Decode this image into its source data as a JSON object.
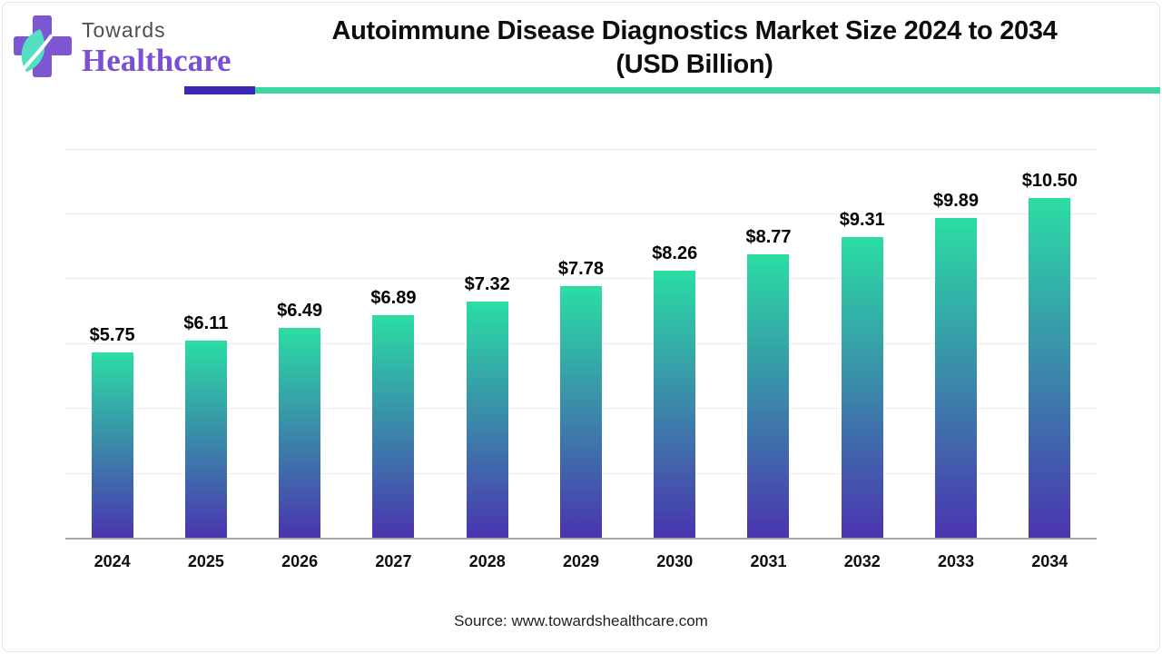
{
  "header": {
    "logo_line1": "Towards",
    "logo_line2": "Healthcare",
    "title_line1": "Autoimmune Disease Diagnostics Market Size 2024 to 2034",
    "title_line2": "(USD Billion)",
    "accent_purple_color": "#3a28b5",
    "accent_teal_color": "#3ed6a3",
    "logo_cross_color": "#7d57d2",
    "logo_leaf_color": "#54dfc0"
  },
  "chart_data": {
    "type": "bar",
    "title": "Autoimmune Disease Diagnostics Market Size 2024 to 2034 (USD Billion)",
    "categories": [
      "2024",
      "2025",
      "2026",
      "2027",
      "2028",
      "2029",
      "2030",
      "2031",
      "2032",
      "2033",
      "2034"
    ],
    "values": [
      5.75,
      6.11,
      6.49,
      6.89,
      7.32,
      7.78,
      8.26,
      8.77,
      9.31,
      9.89,
      10.5
    ],
    "labels": [
      "$5.75",
      "$6.11",
      "$6.49",
      "$6.89",
      "$7.32",
      "$7.78",
      "$8.26",
      "$8.77",
      "$9.31",
      "$9.89",
      "$10.50"
    ],
    "xlabel": "",
    "ylabel": "",
    "ylim": [
      0,
      12.2
    ],
    "gridline_values": [
      2,
      4,
      6,
      8,
      10,
      12
    ],
    "grid": "horizontal",
    "legend": "none",
    "bar_gradient_top": "#2bdda4",
    "bar_gradient_bottom": "#4a34af",
    "axis_line_color": "#ababab"
  },
  "footer": {
    "source": "Source: www.towardshealthcare.com"
  }
}
